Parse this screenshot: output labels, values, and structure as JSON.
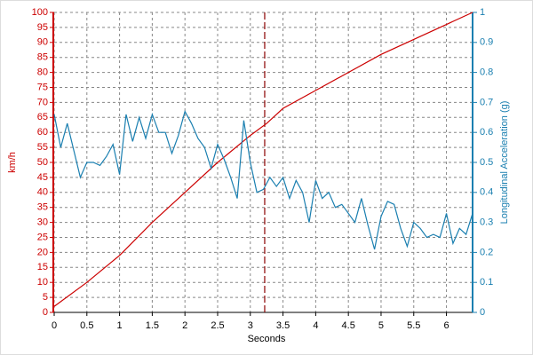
{
  "chart_data": {
    "type": "line",
    "x_label": "Seconds",
    "y_label": "km/h",
    "y2_label": "Longitudinal Acceleration (g)",
    "xlim": [
      0,
      6.4
    ],
    "xticks": [
      0,
      0.5,
      1,
      1.5,
      2,
      2.5,
      3,
      3.5,
      4,
      4.5,
      5,
      5.5,
      6
    ],
    "ylim": [
      0,
      100
    ],
    "yticks": [
      0,
      5,
      10,
      15,
      20,
      25,
      30,
      35,
      40,
      45,
      50,
      55,
      60,
      65,
      70,
      75,
      80,
      85,
      90,
      95,
      100
    ],
    "y2lim": [
      0,
      1
    ],
    "y2ticks": [
      0,
      0.1,
      0.2,
      0.3,
      0.4,
      0.5,
      0.6,
      0.7,
      0.8,
      0.9,
      1
    ],
    "grid": true,
    "cursor": 3.22,
    "cursor_color": "#8b0000",
    "series": [
      {
        "color": "#cc0000",
        "axis": "y",
        "x": [
          0,
          0.5,
          1,
          1.5,
          2,
          2.5,
          3,
          3.25,
          3.5,
          4,
          4.5,
          5,
          5.5,
          6,
          6.4
        ],
        "values": [
          2,
          10,
          19,
          30,
          40,
          50,
          59,
          63,
          68,
          74,
          80,
          86,
          91,
          96,
          100
        ]
      },
      {
        "color": "#1a7fb0",
        "axis": "y2",
        "x": [
          0,
          0.1,
          0.2,
          0.3,
          0.4,
          0.5,
          0.6,
          0.7,
          0.8,
          0.9,
          1,
          1.1,
          1.2,
          1.3,
          1.4,
          1.5,
          1.6,
          1.7,
          1.8,
          1.9,
          2,
          2.1,
          2.2,
          2.3,
          2.4,
          2.5,
          2.6,
          2.7,
          2.8,
          2.9,
          3,
          3.1,
          3.2,
          3.3,
          3.4,
          3.5,
          3.6,
          3.7,
          3.8,
          3.9,
          4,
          4.1,
          4.2,
          4.3,
          4.4,
          4.5,
          4.6,
          4.7,
          4.8,
          4.9,
          5,
          5.1,
          5.2,
          5.3,
          5.4,
          5.5,
          5.6,
          5.7,
          5.8,
          5.9,
          6,
          6.1,
          6.2,
          6.3,
          6.4
        ],
        "values": [
          0.66,
          0.55,
          0.63,
          0.54,
          0.45,
          0.5,
          0.5,
          0.49,
          0.52,
          0.56,
          0.46,
          0.66,
          0.57,
          0.65,
          0.58,
          0.66,
          0.6,
          0.6,
          0.53,
          0.59,
          0.67,
          0.63,
          0.58,
          0.55,
          0.48,
          0.56,
          0.51,
          0.45,
          0.38,
          0.64,
          0.5,
          0.4,
          0.41,
          0.45,
          0.42,
          0.45,
          0.38,
          0.44,
          0.4,
          0.3,
          0.44,
          0.38,
          0.4,
          0.35,
          0.36,
          0.33,
          0.3,
          0.38,
          0.29,
          0.21,
          0.32,
          0.37,
          0.36,
          0.28,
          0.22,
          0.3,
          0.28,
          0.25,
          0.26,
          0.25,
          0.33,
          0.23,
          0.28,
          0.26,
          0.33
        ]
      }
    ]
  }
}
